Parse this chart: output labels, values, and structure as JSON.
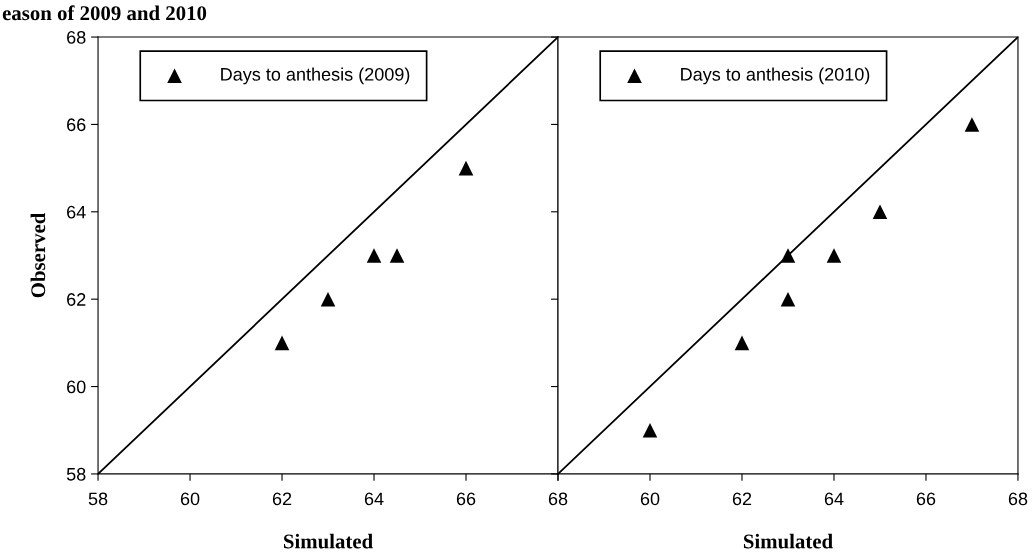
{
  "chart_data": [
    {
      "type": "scatter",
      "title": "eason of 2009 and 2010",
      "xlabel": "Simulated",
      "ylabel": "Observed",
      "xlim": [
        58,
        68
      ],
      "ylim": [
        58,
        68
      ],
      "xticks": [
        58,
        60,
        62,
        64,
        66,
        68
      ],
      "yticks": [
        58,
        60,
        62,
        64,
        66,
        68
      ],
      "legend": "top left",
      "series": [
        {
          "name": "Days to anthesis (2009)",
          "marker": "triangle",
          "color": "#000000",
          "x": [
            62,
            63,
            64,
            64.5,
            66
          ],
          "values": [
            61,
            62,
            63,
            63,
            65
          ]
        },
        {
          "type": "line",
          "color": "#000000",
          "x": [
            58,
            68
          ],
          "values": [
            58,
            68
          ]
        }
      ]
    },
    {
      "type": "scatter",
      "xlabel": "Simulated",
      "xlim": [
        58,
        68
      ],
      "ylim": [
        58,
        68
      ],
      "xticks": [
        {
          "value": 58,
          "label": null
        },
        60,
        62,
        64,
        66,
        68
      ],
      "yticks": [
        {
          "value": 58,
          "label": null
        },
        {
          "value": 60,
          "label": null
        },
        {
          "value": 62,
          "label": null
        },
        {
          "value": 64,
          "label": null
        },
        {
          "value": 66,
          "label": null
        },
        {
          "value": 68,
          "label": null
        }
      ],
      "tick_labels": "x",
      "legend": "top left",
      "series": [
        {
          "name": "Days to anthesis (2010)",
          "marker": "triangle",
          "color": "#000000",
          "x": [
            60,
            62,
            63,
            63,
            64,
            65,
            67
          ],
          "values": [
            59,
            61,
            63,
            62,
            63,
            64,
            66
          ]
        },
        {
          "type": "line",
          "color": "#000000",
          "x": [
            58,
            68
          ],
          "values": [
            58,
            68
          ]
        }
      ]
    }
  ]
}
